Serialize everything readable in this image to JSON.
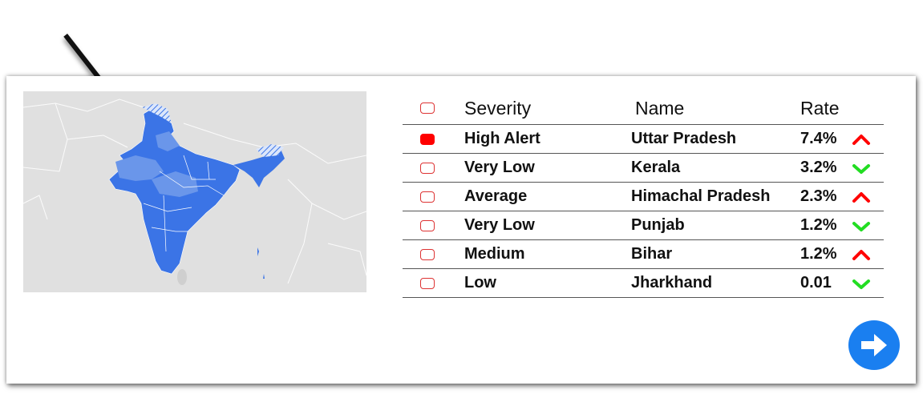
{
  "table": {
    "headers": {
      "select": "",
      "severity": "Severity",
      "name": "Name",
      "rate": "Rate"
    },
    "rows": [
      {
        "checked": true,
        "severity": "High Alert",
        "name": "Uttar Pradesh",
        "rate": "7.4%",
        "trend": "up"
      },
      {
        "checked": false,
        "severity": "Very Low",
        "name": "Kerala",
        "rate": "3.2%",
        "trend": "down"
      },
      {
        "checked": false,
        "severity": "Average",
        "name": "Himachal Pradesh",
        "rate": "2.3%",
        "trend": "up"
      },
      {
        "checked": false,
        "severity": "Very Low",
        "name": "Punjab",
        "rate": "1.2%",
        "trend": "down"
      },
      {
        "checked": false,
        "severity": "Medium",
        "name": "Bihar",
        "rate": "1.2%",
        "trend": "up"
      },
      {
        "checked": false,
        "severity": "Low",
        "name": "Jharkhand",
        "rate": "0.01",
        "trend": "down"
      }
    ]
  },
  "icons": {
    "up": "caret-up-icon",
    "down": "check-down-icon",
    "next": "arrow-right-icon"
  },
  "colors": {
    "up": "#ff0000",
    "down": "#22dd22",
    "checkbox_on": "#ff0000",
    "checkbox_border": "#dd3333",
    "map_land": "#e0e0e0",
    "map_region_dark": "#3b74e6",
    "map_region_light": "#6a96ea",
    "button": "#1a7ff0"
  }
}
